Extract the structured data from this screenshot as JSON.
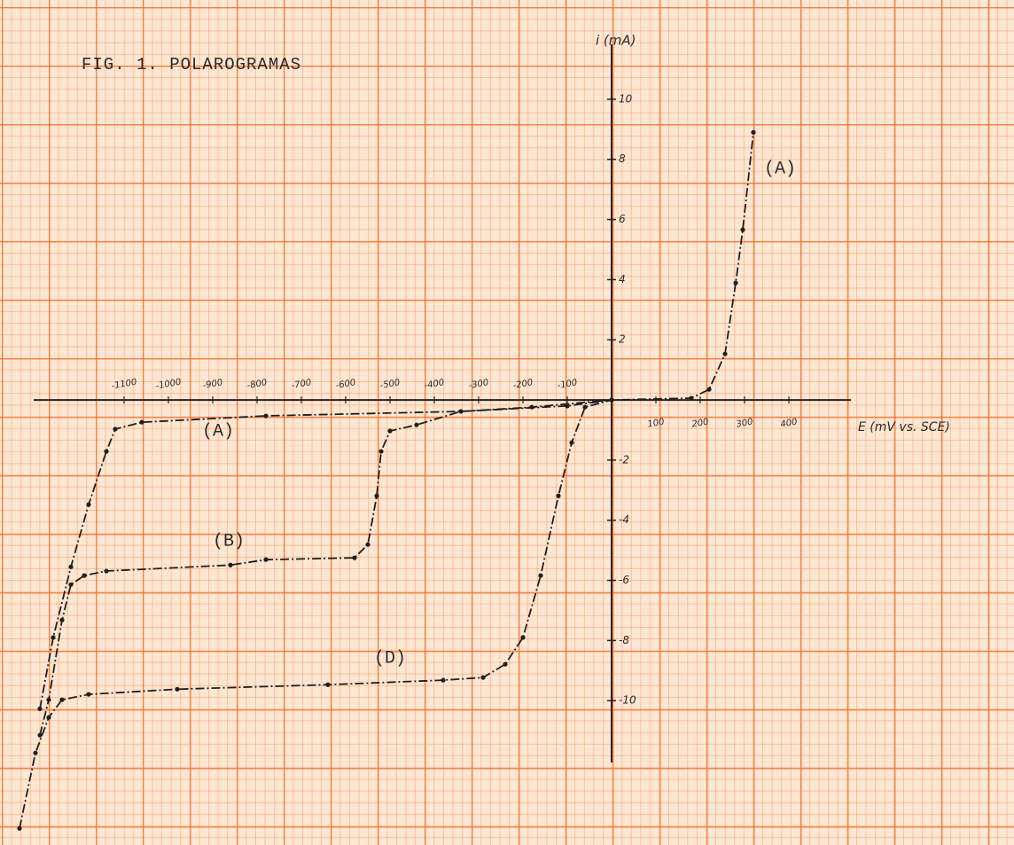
{
  "chart_data": {
    "type": "line",
    "title": "FIG. 1. POLAROGRAMAS",
    "y_label": "i (mA)",
    "x_label": "E (mV vs. SCE)",
    "xlim": [
      -1340,
      908
    ],
    "ylim": [
      -14.8,
      13.3
    ],
    "xticks": [
      -1100,
      -1000,
      -900,
      -800,
      -700,
      -600,
      -500,
      -400,
      -300,
      -200,
      -100,
      100,
      200,
      300,
      400
    ],
    "yticks": [
      10,
      8,
      6,
      4,
      2,
      -2,
      -4,
      -6,
      -8,
      -10
    ],
    "series": [
      {
        "name": "(A)",
        "color": "#1f1f1f",
        "x": [
          -1290,
          -1260,
          -1220,
          -1180,
          -1140,
          -1120,
          -1060,
          -780,
          -340,
          -100,
          0,
          180,
          220,
          256,
          280,
          296,
          320
        ],
        "values": [
          -10.27,
          -7.9,
          -5.55,
          -3.48,
          -1.71,
          -0.97,
          -0.74,
          -0.53,
          -0.38,
          -0.2,
          0,
          0.06,
          0.35,
          1.53,
          3.89,
          5.66,
          8.9
        ]
      },
      {
        "name": "(B)",
        "color": "#1f1f1f",
        "x": [
          -1290,
          -1270,
          -1240,
          -1220,
          -1190,
          -1140,
          -860,
          -780,
          -580,
          -550,
          -530,
          -520,
          -500,
          -440,
          -340,
          -180,
          0
        ],
        "values": [
          -11.15,
          -9.97,
          -7.32,
          -6.14,
          -5.84,
          -5.69,
          -5.49,
          -5.31,
          -5.25,
          -4.81,
          -3.19,
          -1.71,
          -1.03,
          -0.83,
          -0.38,
          -0.24,
          0
        ]
      },
      {
        "name": "(D)",
        "color": "#1f1f1f",
        "x": [
          -1336,
          -1300,
          -1270,
          -1240,
          -1180,
          -980,
          -640,
          -380,
          -290,
          -240,
          -200,
          -160,
          -120,
          -90,
          -60,
          0
        ],
        "values": [
          -14.25,
          -11.74,
          -10.56,
          -9.97,
          -9.79,
          -9.62,
          -9.47,
          -9.32,
          -9.23,
          -8.79,
          -7.9,
          -5.84,
          -3.19,
          -1.42,
          -0.24,
          0
        ]
      }
    ]
  }
}
